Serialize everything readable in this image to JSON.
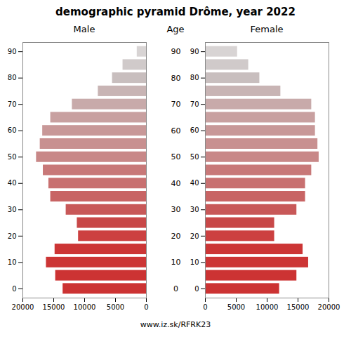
{
  "chart_data": {
    "type": "bar",
    "orientation": "horizontal",
    "title": "demographic pyramid Drôme, year 2022",
    "annotations": [
      "www.iz.sk/RFRK23"
    ],
    "ylabel": "Age",
    "categories": [
      0,
      5,
      10,
      15,
      20,
      25,
      30,
      35,
      40,
      45,
      50,
      55,
      60,
      65,
      70,
      75,
      80,
      85,
      90
    ],
    "colors": [
      "#cc3333",
      "#cc3333",
      "#cc3535",
      "#cc3535",
      "#cc4040",
      "#c84848",
      "#c85858",
      "#c86464",
      "#c87070",
      "#c87878",
      "#c88888",
      "#c89090",
      "#c89898",
      "#c8a0a0",
      "#c8aaaa",
      "#c8b4b4",
      "#c8bebe",
      "#d0caca",
      "#d8d4d4"
    ],
    "ylim": [
      -3.5,
      93.5
    ],
    "yticks": [
      0,
      10,
      20,
      30,
      40,
      50,
      60,
      70,
      80,
      90
    ],
    "grid": false,
    "series": [
      {
        "name": "Male",
        "values": [
          13500,
          14700,
          16200,
          14800,
          11000,
          11200,
          13000,
          15500,
          15800,
          16700,
          17800,
          17200,
          16800,
          15500,
          12000,
          7800,
          5500,
          3800,
          1500
        ],
        "xlim": [
          20000,
          0
        ],
        "xticks": [
          20000,
          15000,
          10000,
          5000,
          0
        ]
      },
      {
        "name": "Female",
        "values": [
          12000,
          14800,
          16700,
          15800,
          11200,
          11200,
          14800,
          16200,
          16200,
          17200,
          18400,
          18200,
          17800,
          17800,
          17200,
          12200,
          8800,
          7000,
          5200
        ],
        "xlim": [
          0,
          20000
        ],
        "xticks": [
          0,
          5000,
          10000,
          15000,
          20000
        ]
      }
    ]
  }
}
